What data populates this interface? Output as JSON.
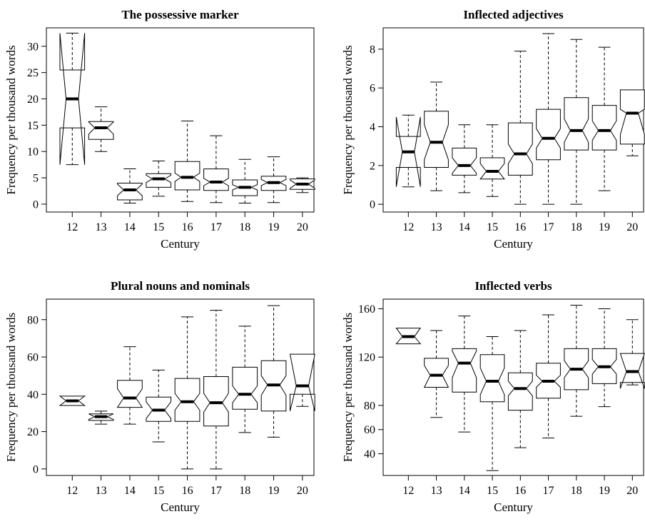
{
  "chart_data": [
    {
      "type": "box",
      "title": "The possessive marker",
      "xlabel": "Century",
      "ylabel": "Frequency per thousand words",
      "categories": [
        "12",
        "13",
        "14",
        "15",
        "16",
        "17",
        "18",
        "19",
        "20"
      ],
      "yticks": [
        0,
        5,
        10,
        15,
        20,
        25,
        30
      ],
      "ylim": [
        -1.5,
        33.5
      ],
      "grid": false,
      "boxes": [
        {
          "min": 7.5,
          "q1": 14.5,
          "median": 20,
          "q3": 25.5,
          "max": 32.5,
          "notch_low": 7.5,
          "notch_high": 32.5
        },
        {
          "min": 10,
          "q1": 12.3,
          "median": 14.5,
          "q3": 15.7,
          "max": 18.5,
          "notch_low": 13.3,
          "notch_high": 15.6
        },
        {
          "min": 0.2,
          "q1": 0.8,
          "median": 2.7,
          "q3": 4.0,
          "max": 6.7,
          "notch_low": 1.6,
          "notch_high": 3.8
        },
        {
          "min": 1.5,
          "q1": 3.2,
          "median": 4.8,
          "q3": 5.8,
          "max": 8.2,
          "notch_low": 4.1,
          "notch_high": 5.5
        },
        {
          "min": 0.5,
          "q1": 2.7,
          "median": 5.1,
          "q3": 8.1,
          "max": 15.8,
          "notch_low": 4.3,
          "notch_high": 5.9
        },
        {
          "min": 0.3,
          "q1": 2.6,
          "median": 4.2,
          "q3": 6.7,
          "max": 13.0,
          "notch_low": 3.5,
          "notch_high": 4.9
        },
        {
          "min": 0.2,
          "q1": 1.6,
          "median": 3.2,
          "q3": 4.6,
          "max": 8.5,
          "notch_low": 2.7,
          "notch_high": 3.7
        },
        {
          "min": 0.3,
          "q1": 2.6,
          "median": 4.1,
          "q3": 5.3,
          "max": 9.0,
          "notch_low": 3.5,
          "notch_high": 4.7
        },
        {
          "min": 2.2,
          "q1": 2.8,
          "median": 3.8,
          "q3": 4.8,
          "max": 5.0,
          "notch_low": 3.0,
          "notch_high": 4.6
        }
      ]
    },
    {
      "type": "box",
      "title": "Inflected adjectives",
      "xlabel": "Century",
      "ylabel": "Frequency per thousand words",
      "categories": [
        "12",
        "13",
        "14",
        "15",
        "16",
        "17",
        "18",
        "19",
        "20"
      ],
      "yticks": [
        0,
        2,
        4,
        6,
        8
      ],
      "ylim": [
        -0.4,
        9.1
      ],
      "grid": false,
      "boxes": [
        {
          "min": 0.9,
          "q1": 1.9,
          "median": 2.7,
          "q3": 3.5,
          "max": 4.6,
          "notch_low": 0.9,
          "notch_high": 4.5
        },
        {
          "min": 0.7,
          "q1": 1.9,
          "median": 3.2,
          "q3": 4.8,
          "max": 6.3,
          "notch_low": 2.3,
          "notch_high": 4.1
        },
        {
          "min": 0.6,
          "q1": 1.5,
          "median": 2.0,
          "q3": 2.9,
          "max": 4.1,
          "notch_low": 1.6,
          "notch_high": 2.4
        },
        {
          "min": 0.4,
          "q1": 1.3,
          "median": 1.7,
          "q3": 2.4,
          "max": 4.1,
          "notch_low": 1.3,
          "notch_high": 2.1
        },
        {
          "min": 0.0,
          "q1": 1.5,
          "median": 2.6,
          "q3": 4.2,
          "max": 7.9,
          "notch_low": 2.1,
          "notch_high": 3.1
        },
        {
          "min": 0.0,
          "q1": 2.3,
          "median": 3.4,
          "q3": 4.9,
          "max": 8.8,
          "notch_low": 2.9,
          "notch_high": 3.9
        },
        {
          "min": 0.0,
          "q1": 2.8,
          "median": 3.8,
          "q3": 5.5,
          "max": 8.5,
          "notch_low": 3.2,
          "notch_high": 4.4
        },
        {
          "min": 0.7,
          "q1": 2.8,
          "median": 3.8,
          "q3": 5.1,
          "max": 8.1,
          "notch_low": 3.3,
          "notch_high": 4.3
        },
        {
          "min": 2.5,
          "q1": 3.1,
          "median": 4.7,
          "q3": 5.9,
          "max": 5.9,
          "notch_low": 3.6,
          "notch_high": 4.9
        }
      ]
    },
    {
      "type": "box",
      "title": "Plural nouns and nominals",
      "xlabel": "Century",
      "ylabel": "Frequency per thousand words",
      "categories": [
        "12",
        "13",
        "14",
        "15",
        "16",
        "17",
        "18",
        "19",
        "20"
      ],
      "yticks": [
        0,
        20,
        40,
        60,
        80
      ],
      "ylim": [
        -3.5,
        91
      ],
      "grid": false,
      "boxes": [
        {
          "min": 34,
          "q1": 34,
          "median": 36.5,
          "q3": 39,
          "max": 39,
          "notch_low": 34,
          "notch_high": 39
        },
        {
          "min": 24,
          "q1": 26,
          "median": 28,
          "q3": 29.5,
          "max": 31,
          "notch_low": 26.5,
          "notch_high": 29.5
        },
        {
          "min": 24,
          "q1": 33,
          "median": 38,
          "q3": 47.5,
          "max": 65.5,
          "notch_low": 33,
          "notch_high": 43
        },
        {
          "min": 14.5,
          "q1": 25.5,
          "median": 31.5,
          "q3": 38.5,
          "max": 53,
          "notch_low": 27,
          "notch_high": 36
        },
        {
          "min": 0,
          "q1": 25.5,
          "median": 36,
          "q3": 48.5,
          "max": 81.5,
          "notch_low": 31.5,
          "notch_high": 40.5
        },
        {
          "min": 0,
          "q1": 23,
          "median": 35.5,
          "q3": 49.5,
          "max": 85,
          "notch_low": 30.5,
          "notch_high": 40.5
        },
        {
          "min": 19.5,
          "q1": 32,
          "median": 40,
          "q3": 54.5,
          "max": 76.5,
          "notch_low": 35.5,
          "notch_high": 44.5
        },
        {
          "min": 17,
          "q1": 31,
          "median": 45,
          "q3": 58,
          "max": 87.5,
          "notch_low": 39.5,
          "notch_high": 50
        },
        {
          "min": 33.5,
          "q1": 40,
          "median": 44.5,
          "q3": 61.5,
          "max": 61.5,
          "notch_low": 31,
          "notch_high": 61.5
        }
      ]
    },
    {
      "type": "box",
      "title": "Inflected verbs",
      "xlabel": "Century",
      "ylabel": "Frequency per thousand words",
      "categories": [
        "12",
        "13",
        "14",
        "15",
        "16",
        "17",
        "18",
        "19",
        "20"
      ],
      "yticks": [
        40,
        60,
        80,
        120,
        160
      ],
      "ylim": [
        22,
        168
      ],
      "grid": false,
      "boxes": [
        {
          "min": 131,
          "q1": 131,
          "median": 137,
          "q3": 144,
          "max": 144,
          "notch_low": 131,
          "notch_high": 144
        },
        {
          "min": 70,
          "q1": 95,
          "median": 105,
          "q3": 119,
          "max": 142,
          "notch_low": 95,
          "notch_high": 113
        },
        {
          "min": 58,
          "q1": 91,
          "median": 115,
          "q3": 127,
          "max": 154,
          "notch_low": 103,
          "notch_high": 125
        },
        {
          "min": 26,
          "q1": 83,
          "median": 100,
          "q3": 122,
          "max": 137,
          "notch_low": 89,
          "notch_high": 111
        },
        {
          "min": 45,
          "q1": 76,
          "median": 94,
          "q3": 107,
          "max": 142,
          "notch_low": 88,
          "notch_high": 100
        },
        {
          "min": 53,
          "q1": 86,
          "median": 100,
          "q3": 115,
          "max": 155,
          "notch_low": 95,
          "notch_high": 105
        },
        {
          "min": 71,
          "q1": 93,
          "median": 110,
          "q3": 127,
          "max": 163,
          "notch_low": 103,
          "notch_high": 117
        },
        {
          "min": 79,
          "q1": 98,
          "median": 112,
          "q3": 127,
          "max": 160,
          "notch_low": 106,
          "notch_high": 118
        },
        {
          "min": 97,
          "q1": 99,
          "median": 108,
          "q3": 123,
          "max": 151,
          "notch_low": 94,
          "notch_high": 123
        }
      ]
    }
  ]
}
